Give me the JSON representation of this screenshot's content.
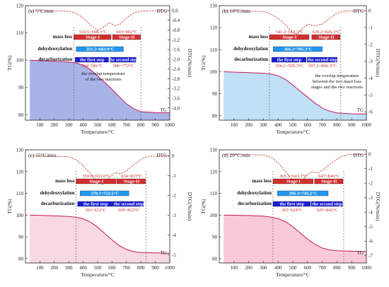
{
  "chart_data": [
    {
      "id": "a",
      "type": "line",
      "title": "(a) 5°C/min",
      "xlabel": "Temperature/°C",
      "ylabel": "TG(%)",
      "y2label": "DTG(%/min)",
      "xlim": [
        0,
        1000
      ],
      "ylim": [
        78,
        120
      ],
      "y2lim": [
        -4.5,
        0.2
      ],
      "xticks": [
        100,
        200,
        300,
        400,
        500,
        600,
        700,
        800,
        900,
        1000
      ],
      "yticks": [
        80,
        90,
        100,
        110,
        120
      ],
      "y2ticks": [
        0.0,
        -0.4,
        -0.8,
        -1.2,
        -1.6,
        -2.0,
        -2.4,
        -2.8,
        -3.2,
        -3.6,
        -4.0
      ],
      "y2tick_labels": [
        "0.0",
        "-0.4",
        "-0.8",
        "-1.2",
        "-1.6",
        "-2.0",
        "-2.4",
        "-2.8",
        "-3.2",
        "-3.6",
        "-4.0"
      ],
      "tg_label": "TG",
      "dtg_label": "DTG",
      "tg": {
        "x": [
          30,
          200,
          300,
          350,
          400,
          450,
          500,
          550,
          600,
          650,
          700,
          750,
          800,
          900,
          1000
        ],
        "y": [
          100,
          99.6,
          99.3,
          99.0,
          98.2,
          96.6,
          94.2,
          91.8,
          89.3,
          86.6,
          84.0,
          82.2,
          81.1,
          80.8,
          80.7
        ]
      },
      "dtg": {
        "x": [
          30,
          300,
          350,
          400,
          450,
          500,
          550,
          580,
          620,
          660,
          700,
          750,
          800,
          1000
        ],
        "y": [
          0.0,
          -0.03,
          -0.12,
          -0.3,
          -0.6,
          -0.8,
          -0.65,
          -0.5,
          -0.62,
          -0.55,
          -0.3,
          -0.1,
          -0.02,
          0.0
        ]
      },
      "rows": {
        "mass": "mass loss",
        "dehyd": "dehydroxylation",
        "decarb": "decarburization"
      },
      "bars": [
        {
          "row": "mass",
          "label": "Stage-I",
          "x0": 334.5,
          "x1": 598.3,
          "range": "334.5~598.3°C",
          "range_pos": "above"
        },
        {
          "row": "mass",
          "label": "Stage-II",
          "x0": 603.4,
          "x1": 802,
          "range": "603~802°C",
          "range_pos": "above"
        },
        {
          "row": "dehyd",
          "label": "351.5~683.9°C",
          "x0": 351.5,
          "x1": 683.9,
          "range": "",
          "range_pos": "above"
        },
        {
          "row": "decarb",
          "label": "the first step",
          "x0": 344,
          "x1": 581,
          "range": "344~581°C",
          "range_pos": "below"
        },
        {
          "row": "decarb",
          "label": "the second step",
          "x0": 586,
          "x1": 772,
          "range": "586~772°C",
          "range_pos": "below"
        }
      ],
      "overlap_note": [
        "the overlap temperature",
        "of the two reactions"
      ],
      "vlines": [
        336,
        800
      ]
    },
    {
      "id": "b",
      "type": "line",
      "title": "(b) 10°C/min",
      "xlabel": "Temperature/°C",
      "ylabel": "TG(%)",
      "y2label": "DTG(%/min)",
      "xlim": [
        0,
        1000
      ],
      "ylim": [
        78,
        130
      ],
      "y2lim": [
        -6.5,
        0.3
      ],
      "xticks": [
        100,
        200,
        300,
        400,
        500,
        600,
        700,
        800,
        900,
        1000
      ],
      "yticks": [
        80,
        90,
        100,
        110,
        120,
        130
      ],
      "y2ticks": [
        0,
        -1,
        -2,
        -3,
        -4,
        -5,
        -6
      ],
      "y2tick_labels": [
        "0",
        "-1",
        "-2",
        "-3",
        "-4",
        "-5",
        "-6"
      ],
      "tg_label": "TG",
      "dtg_label": "DTG",
      "tg": {
        "x": [
          30,
          200,
          300,
          350,
          400,
          450,
          500,
          550,
          600,
          650,
          700,
          750,
          800,
          900,
          1000
        ],
        "y": [
          100,
          99.6,
          99.3,
          99.0,
          98.2,
          96.5,
          94.0,
          91.2,
          88.5,
          85.8,
          83.5,
          82.1,
          81.3,
          80.9,
          80.8
        ]
      },
      "dtg": {
        "x": [
          30,
          300,
          350,
          400,
          450,
          500,
          530,
          560,
          600,
          650,
          700,
          750,
          800,
          850,
          1000
        ],
        "y": [
          0.0,
          -0.05,
          -0.2,
          -0.45,
          -0.85,
          -1.3,
          -1.4,
          -1.1,
          -0.8,
          -0.9,
          -0.8,
          -0.45,
          -0.15,
          -0.02,
          0.0
        ]
      },
      "rows": {
        "mass": "mass loss",
        "dehyd": "dehydroxylation",
        "decarb": "decarburization"
      },
      "bars": [
        {
          "row": "mass",
          "label": "Stage-I",
          "x0": 341.2,
          "x1": 615.3,
          "range": "341.2~615.3°C",
          "range_pos": "above"
        },
        {
          "row": "mass",
          "label": "Stage-II",
          "x0": 629.2,
          "x1": 826.3,
          "range": "629.2~826.3°C",
          "range_pos": "above"
        },
        {
          "row": "dehyd",
          "label": "366.2~705.3°C",
          "x0": 366.2,
          "x1": 705.3,
          "range": "",
          "range_pos": "above"
        },
        {
          "row": "decarb",
          "label": "the first step",
          "x0": 356.2,
          "x1": 595.3,
          "range": "356.2~595.3°C",
          "range_pos": "below"
        },
        {
          "row": "decarb",
          "label": "the second step",
          "x0": 597.2,
          "x1": 806.3,
          "range": "597.2~806.3°C",
          "range_pos": "below"
        }
      ],
      "overlap_note": [
        "the overlap temperature",
        "between the two mass loss",
        "stages and the two reactions"
      ],
      "vlines": [
        341,
        826
      ]
    },
    {
      "id": "c",
      "type": "line",
      "title": "(c) 15°C/min",
      "xlabel": "Temperature/°C",
      "ylabel": "TG(%)",
      "y2label": "DTG(%/min)",
      "xlim": [
        0,
        1000
      ],
      "ylim": [
        78,
        130
      ],
      "y2lim": [
        -5.4,
        0.3
      ],
      "xticks": [
        100,
        200,
        300,
        400,
        500,
        600,
        700,
        800,
        900,
        1000
      ],
      "yticks": [
        80,
        90,
        100,
        110,
        120,
        130
      ],
      "y2ticks": [
        0,
        -1,
        -2,
        -3,
        -4,
        -5
      ],
      "y2tick_labels": [
        "0",
        "-1",
        "-2",
        "-3",
        "-4",
        "-5"
      ],
      "tg_label": "TG",
      "dtg_label": "DTG",
      "tg": {
        "x": [
          30,
          200,
          300,
          350,
          400,
          450,
          500,
          550,
          600,
          650,
          700,
          750,
          800,
          900,
          1000
        ],
        "y": [
          100,
          99.7,
          99.4,
          99.0,
          98.3,
          96.8,
          94.5,
          91.5,
          88.6,
          86.0,
          84.2,
          83.2,
          82.8,
          82.6,
          82.5
        ]
      },
      "dtg": {
        "x": [
          30,
          300,
          350,
          400,
          450,
          500,
          540,
          580,
          620,
          660,
          700,
          760,
          820,
          860,
          1000
        ],
        "y": [
          0.0,
          -0.05,
          -0.2,
          -0.5,
          -0.9,
          -1.3,
          -1.45,
          -1.1,
          -0.85,
          -0.9,
          -0.75,
          -0.4,
          -0.1,
          -0.02,
          0.0
        ]
      },
      "rows": {
        "mass": "mass loss",
        "dehyd": "dehydroxylation",
        "decarb": "decarburization"
      },
      "bars": [
        {
          "row": "mass",
          "label": "Stage-I",
          "x0": 350.6,
          "x1": 633,
          "range": "350.6~633.0°C",
          "range_pos": "above"
        },
        {
          "row": "mass",
          "label": "Stage-II",
          "x0": 634,
          "x1": 837,
          "range": "634~837°C",
          "range_pos": "above"
        },
        {
          "row": "dehyd",
          "label": "378.7~722.5°C",
          "x0": 378.7,
          "x1": 722.5,
          "range": "",
          "range_pos": "above"
        },
        {
          "row": "decarb",
          "label": "the first step",
          "x0": 361,
          "x1": 612,
          "range": "361~612°C",
          "range_pos": "below"
        },
        {
          "row": "decarb",
          "label": "the second step",
          "x0": 609,
          "x1": 823,
          "range": "609~823°C",
          "range_pos": "below"
        }
      ],
      "overlap_note": [],
      "vlines": [
        350,
        837
      ]
    },
    {
      "id": "d",
      "type": "line",
      "title": "(d) 20°C/min",
      "xlabel": "Temperature/°C",
      "ylabel": "TG(%)",
      "y2label": "DTG(%/min)",
      "xlim": [
        0,
        1000
      ],
      "ylim": [
        78,
        130
      ],
      "y2lim": [
        -7.5,
        0.3
      ],
      "xticks": [
        100,
        200,
        300,
        400,
        500,
        600,
        700,
        800,
        900,
        1000
      ],
      "yticks": [
        80,
        90,
        100,
        110,
        120,
        130
      ],
      "y2ticks": [
        0,
        -1,
        -2,
        -3,
        -4,
        -5,
        -6,
        -7
      ],
      "y2tick_labels": [
        "0",
        "-1",
        "-2",
        "-3",
        "-4",
        "-5",
        "-6",
        "-7"
      ],
      "tg_label": "TG",
      "dtg_label": "DTG",
      "tg": {
        "x": [
          30,
          200,
          300,
          350,
          400,
          450,
          500,
          550,
          600,
          650,
          700,
          750,
          800,
          900,
          1000
        ],
        "y": [
          100,
          99.8,
          99.5,
          99.1,
          98.4,
          97.0,
          94.7,
          91.8,
          89.0,
          86.6,
          84.9,
          84.0,
          83.6,
          83.4,
          83.3
        ]
      },
      "dtg": {
        "x": [
          30,
          300,
          360,
          400,
          450,
          500,
          545,
          590,
          630,
          670,
          710,
          770,
          830,
          880,
          1000
        ],
        "y": [
          0.0,
          -0.05,
          -0.25,
          -0.6,
          -1.2,
          -1.8,
          -2.0,
          -1.5,
          -1.2,
          -1.3,
          -1.05,
          -0.55,
          -0.15,
          -0.02,
          0.0
        ]
      },
      "rows": {
        "mass": "mass loss",
        "dehyd": "dehydroxylation",
        "decarb": "decarburization"
      },
      "bars": [
        {
          "row": "mass",
          "label": "Stage-I",
          "x0": 365.3,
          "x1": 643.1,
          "range": "365.3~643.1°C",
          "range_pos": "above"
        },
        {
          "row": "mass",
          "label": "Stage-II",
          "x0": 647,
          "x1": 846,
          "range": "647~846°C",
          "range_pos": "above"
        },
        {
          "row": "dehyd",
          "label": "395.3~745.2°C",
          "x0": 395.3,
          "x1": 745.2,
          "range": "",
          "range_pos": "above"
        },
        {
          "row": "decarb",
          "label": "the first step",
          "x0": 365,
          "x1": 624,
          "range": "365~624°C",
          "range_pos": "below"
        },
        {
          "row": "decarb",
          "label": "the second step",
          "x0": 625,
          "x1": 842,
          "range": "625~842°C",
          "range_pos": "below"
        }
      ],
      "overlap_note": [],
      "vlines": [
        365,
        846
      ]
    }
  ],
  "colors": {
    "tg_line": "#c2185b",
    "dtg_line": "#c62828",
    "fill_a": "#a8b4e8",
    "fill_b": "#bfe0f5",
    "fill_c": "#f7d9df",
    "fill_d": "#f9c9da",
    "mass_bar": "#d32f2f",
    "dehyd_bar": "#2196f3",
    "decarb_bar": "#1a1fd6",
    "range_text": "#c62828"
  }
}
